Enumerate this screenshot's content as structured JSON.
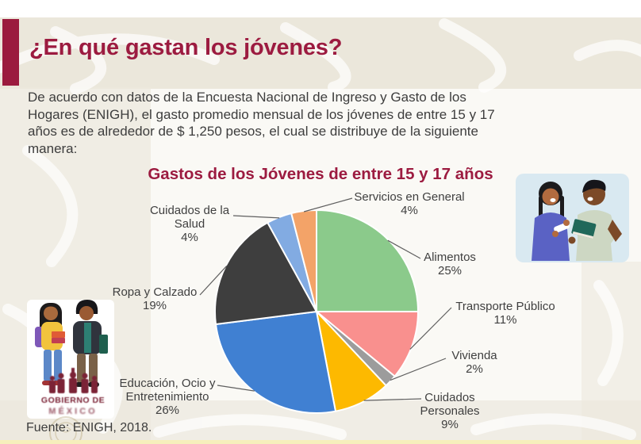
{
  "slide": {
    "title": "¿En qué gastan los jóvenes?",
    "paragraph_lines": [
      "De acuerdo con datos de la Encuesta Nacional de Ingreso y Gasto de los",
      "Hogares (ENIGH), el gasto promedio mensual de los jóvenes de entre 15 y 17",
      "años es de alrededor de $ 1,250 pesos, el cual se distribuye de la siguiente",
      "manera:"
    ],
    "source": "Fuente: ENIGH, 2018.",
    "accent_color": "#9b1b3e",
    "title_color": "#9c1b40"
  },
  "chart_data": {
    "type": "pie",
    "title": "Gastos de los Jóvenes de entre 15 y 17 años",
    "start_angle_deg": 0,
    "direction": "clockwise",
    "total": 100,
    "slices": [
      {
        "label": "Alimentos",
        "pct": 25,
        "color": "#8bca8b",
        "label_lines": [
          "Alimentos",
          "25%"
        ]
      },
      {
        "label": "Transporte Público",
        "pct": 11,
        "color": "#f9908e",
        "label_lines": [
          "Transporte Público",
          "11%"
        ]
      },
      {
        "label": "Vivienda",
        "pct": 2,
        "color": "#9c9c9c",
        "label_lines": [
          "Vivienda",
          "2%"
        ]
      },
      {
        "label": "Cuidados Personales",
        "pct": 9,
        "color": "#fdb900",
        "label_lines": [
          "Cuidados",
          "Personales",
          "9%"
        ]
      },
      {
        "label": "Educación, Ocio y Entretenimiento",
        "pct": 26,
        "color": "#4080d2",
        "label_lines": [
          "Educación, Ocio y",
          "Entretenimiento",
          "26%"
        ]
      },
      {
        "label": "Ropa y Calzado",
        "pct": 19,
        "color": "#3e3e3e",
        "label_lines": [
          "Ropa y Calzado",
          "19%"
        ]
      },
      {
        "label": "Cuidados de la Salud",
        "pct": 4,
        "color": "#82abe2",
        "label_lines": [
          "Cuidados de la",
          "Salud",
          "4%"
        ]
      },
      {
        "label": "Servicios en General",
        "pct": 4,
        "color": "#f3a368",
        "label_lines": [
          "Servicios en General",
          "4%"
        ]
      }
    ]
  },
  "watermark": {
    "line1": "GOBIERNO DE",
    "line2": "MÉXICO"
  },
  "illustrations": {
    "top_right_alt": "two students talking",
    "bottom_left_alt": "two students with books"
  }
}
